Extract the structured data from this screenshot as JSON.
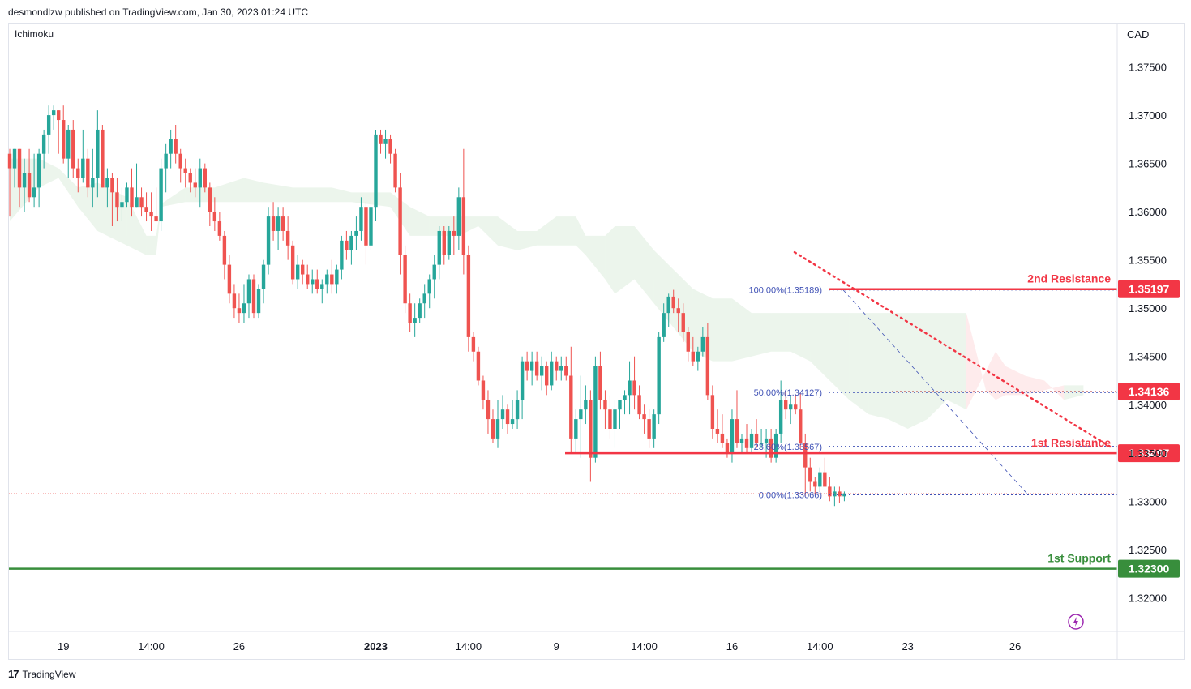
{
  "header": {
    "published_by": "desmondlzw published on TradingView.com, Jan 30, 2023 01:24 UTC"
  },
  "indicator_label": "Ichimoku",
  "currency": "CAD",
  "footer": {
    "brand": "TradingView",
    "brand_mark": "17"
  },
  "colors": {
    "up": "#26a69a",
    "down": "#ef5350",
    "resistance": "#f23645",
    "support": "#388e3c",
    "fib": "#3f51b5"
  },
  "chart_data": {
    "type": "candlestick",
    "y_ticks": [
      1.375,
      1.37,
      1.365,
      1.36,
      1.355,
      1.35,
      1.345,
      1.34,
      1.335,
      1.33,
      1.325,
      1.32
    ],
    "y_tick_labels": [
      "1.37500",
      "1.37000",
      "1.36500",
      "1.36000",
      "1.35500",
      "1.35000",
      "1.34500",
      "1.34000",
      "1.33500",
      "1.33000",
      "1.32500",
      "1.32000"
    ],
    "ylim": [
      1.3165,
      1.3795
    ],
    "x_labels": [
      {
        "label": "19",
        "bar": 11
      },
      {
        "label": "14:00",
        "bar": 29
      },
      {
        "label": "26",
        "bar": 47
      },
      {
        "label": "2023",
        "bar": 75,
        "bold": true
      },
      {
        "label": "14:00",
        "bar": 94
      },
      {
        "label": "9",
        "bar": 112
      },
      {
        "label": "14:00",
        "bar": 130
      },
      {
        "label": "16",
        "bar": 148
      },
      {
        "label": "14:00",
        "bar": 166
      },
      {
        "label": "23",
        "bar": 184
      },
      {
        "label": "26",
        "bar": 206
      }
    ],
    "candles": [
      [
        1.366,
        1.3665,
        1.3595,
        1.3645
      ],
      [
        1.3645,
        1.3665,
        1.3625,
        1.3665
      ],
      [
        1.3665,
        1.3665,
        1.3605,
        1.3625
      ],
      [
        1.3625,
        1.3655,
        1.36,
        1.364
      ],
      [
        1.364,
        1.3665,
        1.361,
        1.3615
      ],
      [
        1.3615,
        1.366,
        1.3605,
        1.3625
      ],
      [
        1.3625,
        1.3665,
        1.3605,
        1.366
      ],
      [
        1.366,
        1.3685,
        1.3645,
        1.368
      ],
      [
        1.368,
        1.371,
        1.366,
        1.37
      ],
      [
        1.37,
        1.371,
        1.3685,
        1.3705
      ],
      [
        1.3705,
        1.3705,
        1.366,
        1.3695
      ],
      [
        1.3695,
        1.371,
        1.365,
        1.3655
      ],
      [
        1.3655,
        1.369,
        1.3635,
        1.3685
      ],
      [
        1.3685,
        1.3695,
        1.3635,
        1.3645
      ],
      [
        1.3645,
        1.3655,
        1.362,
        1.3635
      ],
      [
        1.3635,
        1.3685,
        1.363,
        1.3655
      ],
      [
        1.3655,
        1.3665,
        1.3615,
        1.3625
      ],
      [
        1.3625,
        1.3665,
        1.3605,
        1.3635
      ],
      [
        1.3635,
        1.3705,
        1.3615,
        1.3685
      ],
      [
        1.3685,
        1.369,
        1.3625,
        1.3625
      ],
      [
        1.3625,
        1.3645,
        1.3605,
        1.3635
      ],
      [
        1.3635,
        1.364,
        1.3585,
        1.362
      ],
      [
        1.362,
        1.3635,
        1.359,
        1.3605
      ],
      [
        1.3605,
        1.3625,
        1.359,
        1.361
      ],
      [
        1.361,
        1.363,
        1.3605,
        1.3625
      ],
      [
        1.3625,
        1.3645,
        1.3595,
        1.3605
      ],
      [
        1.3605,
        1.365,
        1.3605,
        1.3615
      ],
      [
        1.3615,
        1.3625,
        1.3595,
        1.3605
      ],
      [
        1.3605,
        1.362,
        1.359,
        1.36
      ],
      [
        1.36,
        1.362,
        1.358,
        1.3595
      ],
      [
        1.3595,
        1.3625,
        1.359,
        1.359
      ],
      [
        1.359,
        1.3655,
        1.358,
        1.3645
      ],
      [
        1.3645,
        1.367,
        1.362,
        1.366
      ],
      [
        1.366,
        1.3685,
        1.3645,
        1.3675
      ],
      [
        1.3675,
        1.369,
        1.365,
        1.366
      ],
      [
        1.366,
        1.3665,
        1.363,
        1.3645
      ],
      [
        1.3645,
        1.3655,
        1.3625,
        1.364
      ],
      [
        1.364,
        1.3645,
        1.362,
        1.363
      ],
      [
        1.363,
        1.3645,
        1.3615,
        1.3625
      ],
      [
        1.3625,
        1.3655,
        1.3605,
        1.3645
      ],
      [
        1.3645,
        1.365,
        1.362,
        1.3625
      ],
      [
        1.3625,
        1.363,
        1.3585,
        1.36
      ],
      [
        1.36,
        1.3615,
        1.358,
        1.359
      ],
      [
        1.359,
        1.36,
        1.357,
        1.3575
      ],
      [
        1.3575,
        1.358,
        1.353,
        1.3545
      ],
      [
        1.3545,
        1.3555,
        1.3505,
        1.3515
      ],
      [
        1.3515,
        1.3525,
        1.349,
        1.35
      ],
      [
        1.35,
        1.3515,
        1.3485,
        1.3495
      ],
      [
        1.3495,
        1.3525,
        1.3485,
        1.3505
      ],
      [
        1.3505,
        1.3535,
        1.349,
        1.353
      ],
      [
        1.353,
        1.3535,
        1.349,
        1.3495
      ],
      [
        1.3495,
        1.3525,
        1.349,
        1.352
      ],
      [
        1.352,
        1.355,
        1.3505,
        1.3545
      ],
      [
        1.3545,
        1.3605,
        1.3535,
        1.3595
      ],
      [
        1.3595,
        1.361,
        1.357,
        1.358
      ],
      [
        1.358,
        1.3605,
        1.356,
        1.3595
      ],
      [
        1.3595,
        1.3605,
        1.357,
        1.358
      ],
      [
        1.358,
        1.3595,
        1.355,
        1.3565
      ],
      [
        1.3565,
        1.357,
        1.3525,
        1.353
      ],
      [
        1.353,
        1.3555,
        1.352,
        1.3545
      ],
      [
        1.3545,
        1.355,
        1.3525,
        1.3535
      ],
      [
        1.3535,
        1.3545,
        1.352,
        1.3525
      ],
      [
        1.3525,
        1.354,
        1.3515,
        1.353
      ],
      [
        1.353,
        1.354,
        1.3515,
        1.352
      ],
      [
        1.352,
        1.353,
        1.3505,
        1.3525
      ],
      [
        1.3525,
        1.354,
        1.3515,
        1.3535
      ],
      [
        1.3535,
        1.355,
        1.3515,
        1.3525
      ],
      [
        1.3525,
        1.3545,
        1.3515,
        1.354
      ],
      [
        1.354,
        1.3575,
        1.353,
        1.357
      ],
      [
        1.357,
        1.358,
        1.355,
        1.356
      ],
      [
        1.356,
        1.358,
        1.3545,
        1.3575
      ],
      [
        1.3575,
        1.3595,
        1.356,
        1.358
      ],
      [
        1.358,
        1.3615,
        1.357,
        1.3605
      ],
      [
        1.3605,
        1.361,
        1.3545,
        1.3565
      ],
      [
        1.3565,
        1.3615,
        1.356,
        1.3605
      ],
      [
        1.3605,
        1.3685,
        1.359,
        1.368
      ],
      [
        1.368,
        1.3685,
        1.366,
        1.367
      ],
      [
        1.367,
        1.3685,
        1.3655,
        1.3675
      ],
      [
        1.3675,
        1.368,
        1.365,
        1.366
      ],
      [
        1.366,
        1.3665,
        1.362,
        1.3625
      ],
      [
        1.3625,
        1.364,
        1.3535,
        1.3555
      ],
      [
        1.3555,
        1.3565,
        1.3495,
        1.3505
      ],
      [
        1.3505,
        1.3515,
        1.3475,
        1.3485
      ],
      [
        1.3485,
        1.3505,
        1.347,
        1.349
      ],
      [
        1.349,
        1.351,
        1.3485,
        1.3505
      ],
      [
        1.3505,
        1.3525,
        1.349,
        1.3515
      ],
      [
        1.3515,
        1.3535,
        1.35,
        1.353
      ],
      [
        1.353,
        1.3555,
        1.351,
        1.3545
      ],
      [
        1.3545,
        1.3585,
        1.353,
        1.358
      ],
      [
        1.358,
        1.3585,
        1.3545,
        1.3555
      ],
      [
        1.3555,
        1.3585,
        1.355,
        1.358
      ],
      [
        1.358,
        1.3595,
        1.3555,
        1.3575
      ],
      [
        1.3575,
        1.3625,
        1.356,
        1.3615
      ],
      [
        1.3615,
        1.3665,
        1.3535,
        1.3555
      ],
      [
        1.3555,
        1.3565,
        1.3455,
        1.347
      ],
      [
        1.347,
        1.3475,
        1.3445,
        1.3455
      ],
      [
        1.3455,
        1.346,
        1.342,
        1.3425
      ],
      [
        1.3425,
        1.343,
        1.3395,
        1.3405
      ],
      [
        1.3405,
        1.3415,
        1.337,
        1.3385
      ],
      [
        1.3385,
        1.3395,
        1.336,
        1.3365
      ],
      [
        1.3365,
        1.3405,
        1.3355,
        1.3385
      ],
      [
        1.3385,
        1.341,
        1.3375,
        1.3395
      ],
      [
        1.3395,
        1.34,
        1.337,
        1.338
      ],
      [
        1.338,
        1.3405,
        1.3375,
        1.3385
      ],
      [
        1.3385,
        1.3415,
        1.3375,
        1.3405
      ],
      [
        1.3405,
        1.345,
        1.3385,
        1.3445
      ],
      [
        1.3445,
        1.3455,
        1.3425,
        1.3435
      ],
      [
        1.3435,
        1.3455,
        1.342,
        1.3445
      ],
      [
        1.3445,
        1.3455,
        1.3425,
        1.343
      ],
      [
        1.343,
        1.345,
        1.3415,
        1.344
      ],
      [
        1.344,
        1.3445,
        1.341,
        1.342
      ],
      [
        1.342,
        1.3455,
        1.3415,
        1.3445
      ],
      [
        1.3445,
        1.345,
        1.3425,
        1.3435
      ],
      [
        1.3435,
        1.345,
        1.3425,
        1.344
      ],
      [
        1.344,
        1.345,
        1.3425,
        1.343
      ],
      [
        1.343,
        1.346,
        1.335,
        1.3365
      ],
      [
        1.3365,
        1.3395,
        1.335,
        1.3385
      ],
      [
        1.3385,
        1.343,
        1.3345,
        1.3395
      ],
      [
        1.3395,
        1.342,
        1.338,
        1.3405
      ],
      [
        1.3405,
        1.3415,
        1.332,
        1.3345
      ],
      [
        1.3345,
        1.345,
        1.334,
        1.344
      ],
      [
        1.344,
        1.3455,
        1.3395,
        1.3405
      ],
      [
        1.3405,
        1.3415,
        1.3375,
        1.3395
      ],
      [
        1.3395,
        1.341,
        1.3365,
        1.3375
      ],
      [
        1.3375,
        1.3405,
        1.3355,
        1.3395
      ],
      [
        1.3395,
        1.3405,
        1.3375,
        1.3405
      ],
      [
        1.3405,
        1.3415,
        1.339,
        1.341
      ],
      [
        1.341,
        1.3445,
        1.339,
        1.3425
      ],
      [
        1.3425,
        1.345,
        1.3395,
        1.341
      ],
      [
        1.341,
        1.342,
        1.3385,
        1.339
      ],
      [
        1.339,
        1.34,
        1.337,
        1.3385
      ],
      [
        1.3385,
        1.3395,
        1.3355,
        1.3365
      ],
      [
        1.3365,
        1.3395,
        1.3355,
        1.339
      ],
      [
        1.339,
        1.3475,
        1.338,
        1.347
      ],
      [
        1.347,
        1.3505,
        1.3465,
        1.3495
      ],
      [
        1.3495,
        1.3515,
        1.348,
        1.3512
      ],
      [
        1.3512,
        1.3519,
        1.3495,
        1.35
      ],
      [
        1.35,
        1.351,
        1.3475,
        1.3495
      ],
      [
        1.3495,
        1.3505,
        1.3465,
        1.3475
      ],
      [
        1.3475,
        1.348,
        1.3445,
        1.3455
      ],
      [
        1.3455,
        1.347,
        1.344,
        1.3445
      ],
      [
        1.3445,
        1.346,
        1.3435,
        1.3455
      ],
      [
        1.3455,
        1.348,
        1.345,
        1.347
      ],
      [
        1.347,
        1.3485,
        1.3405,
        1.341
      ],
      [
        1.341,
        1.342,
        1.3365,
        1.3375
      ],
      [
        1.3375,
        1.3395,
        1.336,
        1.337
      ],
      [
        1.337,
        1.339,
        1.3355,
        1.336
      ],
      [
        1.336,
        1.3365,
        1.3345,
        1.335
      ],
      [
        1.335,
        1.3395,
        1.334,
        1.3385
      ],
      [
        1.3385,
        1.3415,
        1.3355,
        1.336
      ],
      [
        1.336,
        1.337,
        1.335,
        1.3365
      ],
      [
        1.3365,
        1.338,
        1.335,
        1.3355
      ],
      [
        1.3355,
        1.3375,
        1.335,
        1.337
      ],
      [
        1.337,
        1.3385,
        1.3355,
        1.336
      ],
      [
        1.336,
        1.3375,
        1.3355,
        1.336
      ],
      [
        1.336,
        1.3375,
        1.3345,
        1.3365
      ],
      [
        1.3365,
        1.3375,
        1.334,
        1.3345
      ],
      [
        1.3345,
        1.3375,
        1.334,
        1.337
      ],
      [
        1.337,
        1.3425,
        1.336,
        1.3405
      ],
      [
        1.3405,
        1.3415,
        1.3385,
        1.3395
      ],
      [
        1.3395,
        1.341,
        1.338,
        1.34
      ],
      [
        1.34,
        1.341,
        1.339,
        1.3395
      ],
      [
        1.3395,
        1.3412,
        1.3355,
        1.336
      ],
      [
        1.336,
        1.337,
        1.3305,
        1.3335
      ],
      [
        1.3335,
        1.3345,
        1.331,
        1.332
      ],
      [
        1.332,
        1.3325,
        1.3308,
        1.3315
      ],
      [
        1.3315,
        1.3335,
        1.331,
        1.333
      ],
      [
        1.333,
        1.3345,
        1.3315,
        1.3315
      ],
      [
        1.3315,
        1.3325,
        1.33,
        1.3305
      ],
      [
        1.3305,
        1.3315,
        1.3295,
        1.331
      ],
      [
        1.331,
        1.3315,
        1.3298,
        1.3305
      ],
      [
        1.3305,
        1.331,
        1.33,
        1.3308
      ]
    ],
    "levels": [
      {
        "label": "2nd Resistance",
        "value": 1.35197,
        "price_label": "1.35197",
        "kind": "resistance"
      },
      {
        "label": "1st Resistance",
        "value": 1.33497,
        "price_label": "1.33497",
        "kind": "resistance"
      },
      {
        "label": "1st Support",
        "value": 1.323,
        "price_label": "1.32300",
        "kind": "support"
      }
    ],
    "extra_price_tag": {
      "value": 1.34136,
      "label": "1.34136"
    },
    "fib_levels": [
      {
        "label": "100.00%(1.35189)",
        "value": 1.35189
      },
      {
        "label": "50.00%(1.34127)",
        "value": 1.34127
      },
      {
        "label": "23.60%(1.33567)",
        "value": 1.33567
      },
      {
        "label": "0.00%(1.33066)",
        "value": 1.33066
      }
    ],
    "last_price": 1.3308,
    "cloud": [
      [
        0,
        1.3655,
        1.359
      ],
      [
        6,
        1.3655,
        1.3625
      ],
      [
        10,
        1.3645,
        1.3635
      ],
      [
        14,
        1.3625,
        1.3605
      ],
      [
        18,
        1.363,
        1.358
      ],
      [
        24,
        1.3615,
        1.3565
      ],
      [
        28,
        1.3575,
        1.3555
      ],
      [
        30,
        1.3575,
        1.3555
      ],
      [
        31,
        1.3608,
        1.3605
      ],
      [
        36,
        1.3625,
        1.361
      ],
      [
        42,
        1.3625,
        1.361
      ],
      [
        48,
        1.3635,
        1.361
      ],
      [
        52,
        1.363,
        1.361
      ],
      [
        58,
        1.3625,
        1.361
      ],
      [
        62,
        1.3625,
        1.361
      ],
      [
        66,
        1.3625,
        1.361
      ],
      [
        70,
        1.362,
        1.361
      ],
      [
        78,
        1.362,
        1.3605
      ],
      [
        82,
        1.3605,
        1.3575
      ],
      [
        86,
        1.3595,
        1.3575
      ],
      [
        92,
        1.3595,
        1.3575
      ],
      [
        96,
        1.3595,
        1.3585
      ],
      [
        100,
        1.3595,
        1.3565
      ],
      [
        104,
        1.358,
        1.356
      ],
      [
        108,
        1.358,
        1.3565
      ],
      [
        112,
        1.3595,
        1.3565
      ],
      [
        116,
        1.3595,
        1.3565
      ],
      [
        118,
        1.3575,
        1.3555
      ],
      [
        122,
        1.3575,
        1.353
      ],
      [
        124,
        1.3585,
        1.3515
      ],
      [
        128,
        1.3585,
        1.353
      ],
      [
        132,
        1.356,
        1.3505
      ],
      [
        136,
        1.354,
        1.348
      ],
      [
        140,
        1.352,
        1.3455
      ],
      [
        144,
        1.351,
        1.3445
      ],
      [
        148,
        1.351,
        1.3445
      ],
      [
        152,
        1.3495,
        1.345
      ],
      [
        156,
        1.3495,
        1.3455
      ],
      [
        160,
        1.3495,
        1.3455
      ],
      [
        164,
        1.3495,
        1.3445
      ],
      [
        168,
        1.3495,
        1.3425
      ],
      [
        172,
        1.3495,
        1.3405
      ],
      [
        176,
        1.3495,
        1.339
      ],
      [
        180,
        1.3495,
        1.3385
      ],
      [
        184,
        1.3495,
        1.3375
      ],
      [
        188,
        1.3495,
        1.3385
      ],
      [
        192,
        1.3495,
        1.3405
      ],
      [
        196,
        1.3495,
        1.3395
      ],
      [
        200,
        1.3415,
        1.3435
      ],
      [
        202,
        1.3405,
        1.3455
      ],
      [
        204,
        1.341,
        1.344
      ],
      [
        208,
        1.341,
        1.343
      ],
      [
        212,
        1.3415,
        1.3425
      ],
      [
        216,
        1.342,
        1.3405
      ],
      [
        220,
        1.342,
        1.341
      ]
    ]
  }
}
